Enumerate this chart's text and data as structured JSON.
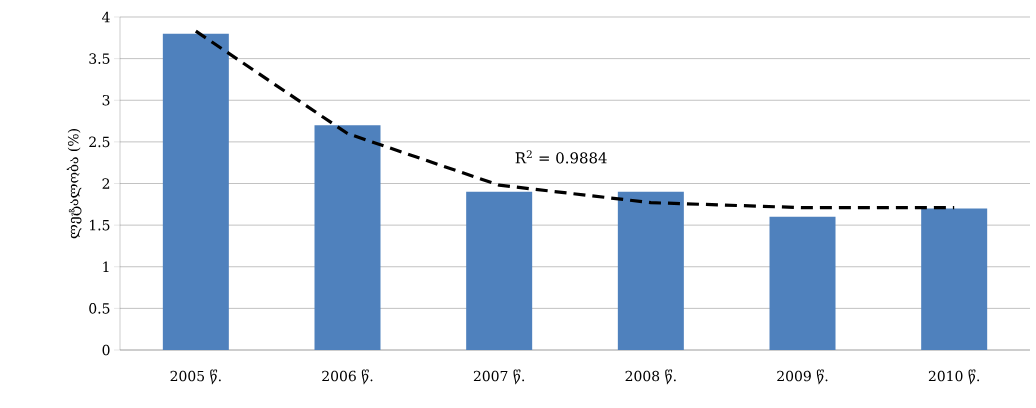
{
  "chart_data": {
    "type": "bar",
    "ylabel": "ლეტალობა (%)",
    "categories": [
      "2005 წ.",
      "2006 წ.",
      "2007 წ.",
      "2008 წ.",
      "2009 წ.",
      "2010 წ."
    ],
    "series": [
      {
        "color": "#4f81bd",
        "values": [
          3.8,
          2.7,
          1.9,
          1.9,
          1.6,
          1.7
        ]
      },
      {
        "type": "line",
        "color": "#000000",
        "line_style": "dashed",
        "values": [
          3.83,
          2.6,
          1.98,
          1.77,
          1.71,
          1.71
        ]
      }
    ],
    "ylim": [
      0,
      4
    ],
    "yticks": [
      0,
      0.5,
      1,
      1.5,
      2,
      2.5,
      3,
      3.5,
      4
    ],
    "grid": "y",
    "annotations": [
      "R$^{2}$ = 0.9884"
    ]
  }
}
